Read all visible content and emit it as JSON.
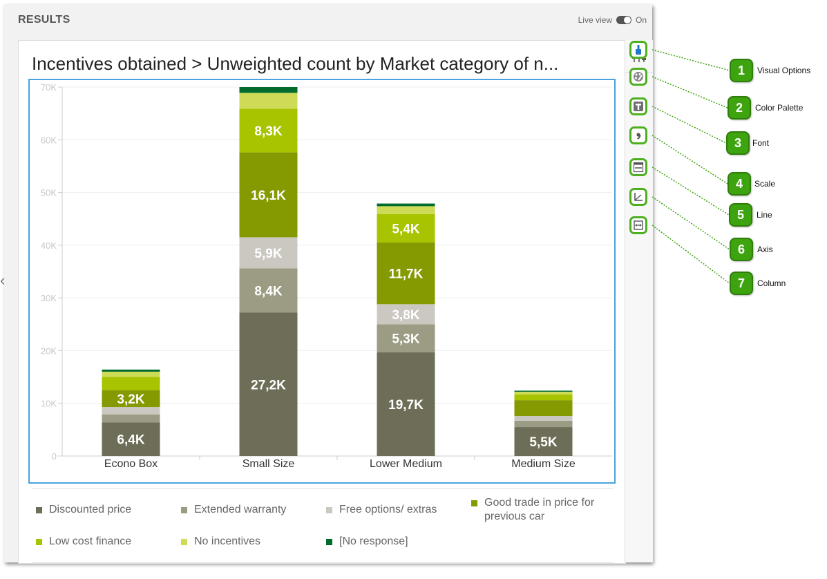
{
  "header": {
    "title": "RESULTS",
    "live_view_label": "Live view",
    "live_view_state": "On"
  },
  "chart_data": {
    "type": "bar",
    "stacked": true,
    "title": "Incentives obtained > Unweighted count by Market category of n...",
    "xlabel": "",
    "ylabel": "",
    "ylim": [
      0,
      70000
    ],
    "yticks": [
      0,
      10000,
      20000,
      30000,
      40000,
      50000,
      60000,
      70000
    ],
    "ytick_labels": [
      "0",
      "10K",
      "20K",
      "30K",
      "40K",
      "50K",
      "60K",
      "70K"
    ],
    "categories": [
      "Econo Box",
      "Small Size",
      "Lower Medium",
      "Medium Size"
    ],
    "series": [
      {
        "name": "Discounted price",
        "color": "#6e6e58",
        "values": [
          6400,
          27200,
          19700,
          5500
        ],
        "labels": [
          "6,4K",
          "27,2K",
          "19,7K",
          "5,5K"
        ]
      },
      {
        "name": "Extended warranty",
        "color": "#9c9c84",
        "values": [
          1500,
          8400,
          5300,
          1200
        ],
        "labels": [
          "",
          "8,4K",
          "5,3K",
          ""
        ]
      },
      {
        "name": "Free options/ extras",
        "color": "#cbc8c2",
        "values": [
          1400,
          5900,
          3800,
          900
        ],
        "labels": [
          "",
          "5,9K",
          "3,8K",
          ""
        ]
      },
      {
        "name": "Good trade in price for previous car",
        "color": "#859900",
        "values": [
          3200,
          16100,
          11700,
          3000
        ],
        "labels": [
          "3,2K",
          "16,1K",
          "11,7K",
          ""
        ]
      },
      {
        "name": "Low cost finance",
        "color": "#a8c400",
        "values": [
          2500,
          8300,
          5400,
          1100
        ],
        "labels": [
          "",
          "8,3K",
          "5,4K",
          ""
        ]
      },
      {
        "name": "No incentives",
        "color": "#cddb57",
        "values": [
          1000,
          3000,
          1500,
          500
        ],
        "labels": [
          "",
          "",
          "",
          ""
        ]
      },
      {
        "name": "[No response]",
        "color": "#006b2c",
        "values": [
          400,
          1100,
          500,
          200
        ],
        "labels": [
          "",
          "",
          "",
          ""
        ]
      }
    ],
    "legend_position": "bottom",
    "grid": true
  },
  "legend": {
    "items": [
      {
        "label": "Discounted price",
        "color": "#6e6e58"
      },
      {
        "label": "Extended warranty",
        "color": "#9c9c84"
      },
      {
        "label": "Free options/ extras",
        "color": "#cbc8c2"
      },
      {
        "label": "Good trade in price for previous car",
        "color": "#859900"
      },
      {
        "label": "Low cost finance",
        "color": "#a8c400"
      },
      {
        "label": "No incentives",
        "color": "#cddb57"
      },
      {
        "label": "[No response]",
        "color": "#006b2c"
      }
    ]
  },
  "toolbar": {
    "top_icon": "sliders-icon",
    "tools": [
      {
        "num": "1",
        "label": "Visual Options",
        "icon": "paint-brush-icon"
      },
      {
        "num": "2",
        "label": "Color Palette",
        "icon": "palette-icon"
      },
      {
        "num": "3",
        "label": "Font",
        "icon": "font-icon"
      },
      {
        "num": "4",
        "label": "Scale",
        "icon": "comma-icon"
      },
      {
        "num": "5",
        "label": "Line",
        "icon": "line-icon"
      },
      {
        "num": "6",
        "label": "Axis",
        "icon": "axis-icon"
      },
      {
        "num": "7",
        "label": "Column",
        "icon": "column-width-icon"
      }
    ]
  },
  "colors": {
    "accent_callout": "#3da40f",
    "selection_border": "#4aa3df",
    "tool_border": "#4caf1d"
  }
}
